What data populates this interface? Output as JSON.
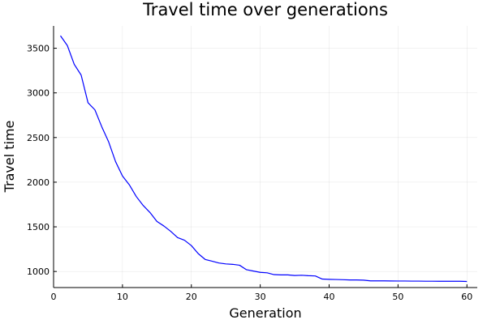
{
  "chart_data": {
    "type": "line",
    "title": "Travel time over generations",
    "xlabel": "Generation",
    "ylabel": "Travel time",
    "xlim": [
      0,
      61.5
    ],
    "ylim": [
      820,
      3750
    ],
    "xticks": [
      0,
      10,
      20,
      30,
      40,
      50,
      60
    ],
    "yticks": [
      1000,
      1500,
      2000,
      2500,
      3000,
      3500
    ],
    "xtick_labels": [
      "0",
      "10",
      "20",
      "30",
      "40",
      "50",
      "60"
    ],
    "ytick_labels": [
      "1000",
      "1500",
      "2000",
      "2500",
      "3000",
      "3500"
    ],
    "grid": true,
    "legend": "none",
    "series": [
      {
        "color": "#0000ff",
        "x": [
          1,
          2,
          3,
          4,
          5,
          6,
          7,
          8,
          9,
          10,
          11,
          12,
          13,
          14,
          15,
          16,
          17,
          18,
          19,
          20,
          21,
          22,
          23,
          24,
          25,
          26,
          27,
          28,
          29,
          30,
          31,
          32,
          33,
          34,
          35,
          36,
          37,
          38,
          39,
          40,
          41,
          42,
          43,
          44,
          45,
          46,
          47,
          48,
          49,
          50,
          51,
          52,
          53,
          54,
          55,
          56,
          57,
          58,
          59,
          60
        ],
        "y": [
          3640,
          3530,
          3320,
          3200,
          2890,
          2810,
          2620,
          2450,
          2230,
          2070,
          1970,
          1840,
          1740,
          1660,
          1560,
          1510,
          1450,
          1380,
          1350,
          1290,
          1200,
          1135,
          1115,
          1095,
          1085,
          1080,
          1070,
          1020,
          1005,
          990,
          985,
          965,
          962,
          962,
          955,
          958,
          953,
          950,
          915,
          912,
          910,
          908,
          905,
          905,
          903,
          895,
          895,
          895,
          894,
          893,
          893,
          892,
          892,
          891,
          891,
          890,
          890,
          890,
          890,
          888
        ]
      }
    ]
  }
}
